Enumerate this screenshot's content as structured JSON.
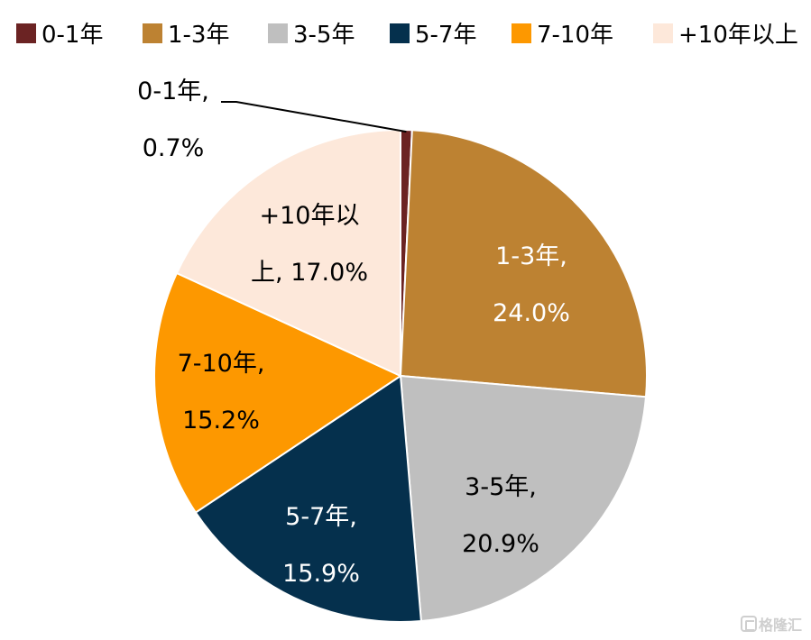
{
  "chart_data": {
    "type": "pie",
    "categories": [
      "0-1年",
      "1-3年",
      "3-5年",
      "5-7年",
      "7-10年",
      "+10年以上"
    ],
    "values": [
      0.7,
      24.0,
      20.9,
      15.9,
      15.2,
      17.0
    ],
    "unit": "%",
    "colors": [
      "#6b2323",
      "#bd8232",
      "#bfbfbf",
      "#05304d",
      "#fd9800",
      "#fde8da"
    ],
    "label_colors": [
      "#000000",
      "#ffffff",
      "#000000",
      "#ffffff",
      "#000000",
      "#000000"
    ],
    "data_labels": [
      [
        "0-1年,",
        "0.7%"
      ],
      [
        "1-3年,",
        "24.0%"
      ],
      [
        "3-5年,",
        "20.9%"
      ],
      [
        "5-7年,",
        "15.9%"
      ],
      [
        "7-10年,",
        "15.2%"
      ],
      [
        "+10年以",
        "上, 17.0%"
      ]
    ],
    "legend": {
      "position": "top",
      "entries": [
        "0-1年",
        "1-3年",
        "3-5年",
        "5-7年",
        "7-10年",
        "+10年以上"
      ]
    },
    "start_angle": "12 o'clock",
    "direction": "clockwise"
  },
  "watermark": {
    "text": "格隆汇"
  }
}
